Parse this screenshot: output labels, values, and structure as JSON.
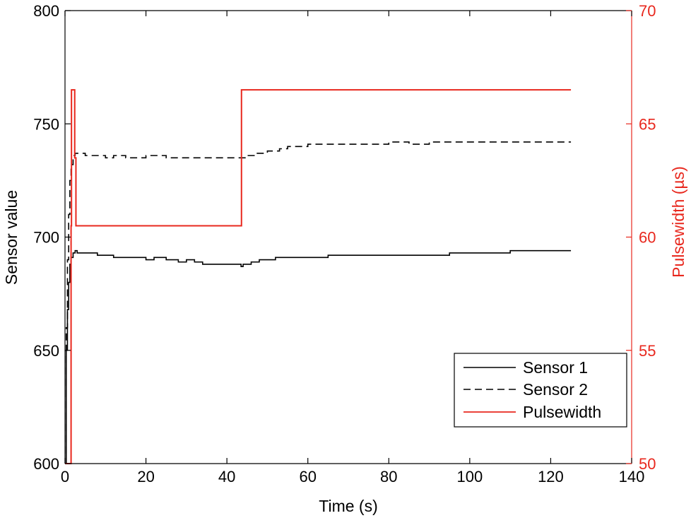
{
  "chart_data": {
    "type": "line",
    "title": "",
    "xlabel": "Time (s)",
    "ylabel": "Sensor value",
    "y2label": "Pulsewidth (µs)",
    "xlim": [
      0,
      140
    ],
    "ylim": [
      600,
      800
    ],
    "y2lim": [
      50,
      70
    ],
    "xticks": [
      0,
      20,
      40,
      60,
      80,
      100,
      120,
      140
    ],
    "yticks": [
      600,
      650,
      700,
      750,
      800
    ],
    "y2ticks": [
      50,
      55,
      60,
      65,
      70
    ],
    "grid": false,
    "legend_position": "lower-right",
    "colors": {
      "sensor": "#000000",
      "pulsewidth": "#e8281e",
      "right_axis": "#e8281e"
    },
    "series": [
      {
        "name": "Sensor 1",
        "axis": "left",
        "style": "solid",
        "x": [
          0,
          0.3,
          0.6,
          0.9,
          1.2,
          1.5,
          2.0,
          2.5,
          3,
          5,
          8,
          10,
          12,
          15,
          18,
          20,
          22,
          25,
          28,
          30,
          32,
          34,
          36,
          38,
          40,
          42,
          43.5,
          44,
          46,
          48,
          50,
          52,
          55,
          60,
          65,
          70,
          75,
          80,
          85,
          90,
          95,
          100,
          105,
          110,
          115,
          120,
          125
        ],
        "y": [
          600,
          650,
          668,
          680,
          688,
          691,
          693,
          694,
          693,
          693,
          692,
          692,
          691,
          691,
          691,
          690,
          691,
          690,
          689,
          690,
          689,
          688,
          688,
          688,
          688,
          688,
          687,
          688,
          689,
          690,
          690,
          691,
          691,
          691,
          692,
          692,
          692,
          692,
          692,
          692,
          693,
          693,
          693,
          694,
          694,
          694,
          694
        ]
      },
      {
        "name": "Sensor 2",
        "axis": "left",
        "style": "dashed",
        "x": [
          0,
          0.3,
          0.6,
          0.9,
          1.2,
          1.5,
          2.0,
          2.5,
          3,
          5,
          8,
          10,
          12,
          15,
          18,
          20,
          25,
          30,
          35,
          40,
          43.5,
          45,
          47,
          50,
          53,
          55,
          60,
          65,
          70,
          75,
          80,
          85,
          90,
          95,
          100,
          110,
          120,
          125
        ],
        "y": [
          600,
          660,
          690,
          710,
          725,
          732,
          736,
          737,
          737,
          736,
          736,
          735,
          736,
          735,
          735,
          736,
          735,
          735,
          735,
          735,
          735,
          736,
          737,
          738,
          739,
          740,
          741,
          741,
          741,
          741,
          742,
          741,
          742,
          742,
          742,
          742,
          742,
          742
        ]
      },
      {
        "name": "Pulsewidth",
        "axis": "right",
        "style": "solid",
        "x": [
          0,
          1,
          1.5,
          1.6,
          2.3,
          2.4,
          2.6,
          2.7,
          43.5,
          43.6,
          125
        ],
        "y": [
          50,
          50,
          60.5,
          66.5,
          66.5,
          63.5,
          63.5,
          60.5,
          60.5,
          66.5,
          66.5
        ]
      }
    ]
  }
}
